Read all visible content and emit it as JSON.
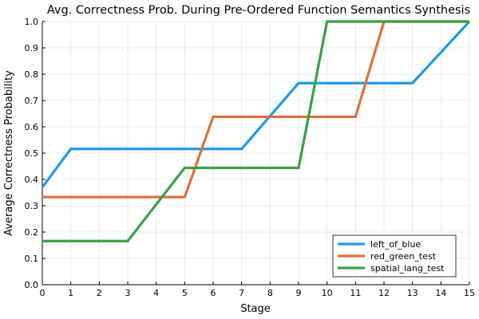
{
  "chart_data": {
    "type": "line",
    "title": "Avg. Correctness Prob. During Pre-Ordered Function Semantics Synthesis",
    "xlabel": "Stage",
    "ylabel": "Average Correctness Probability",
    "xlim": [
      0,
      15
    ],
    "ylim": [
      0,
      1
    ],
    "xticks": [
      0,
      1,
      2,
      3,
      4,
      5,
      6,
      7,
      8,
      9,
      10,
      11,
      12,
      13,
      14,
      15
    ],
    "xtick_labels": [
      "0",
      "1",
      "2",
      "3",
      "4",
      "5",
      "6",
      "7",
      "8",
      "9",
      "10",
      "11",
      "12",
      "13",
      "14",
      "15"
    ],
    "yticks": [
      0,
      0.1,
      0.2,
      0.3,
      0.4,
      0.5,
      0.6,
      0.7,
      0.8,
      0.9,
      1.0
    ],
    "ytick_labels": [
      "0.0",
      "0.1",
      "0.2",
      "0.3",
      "0.4",
      "0.5",
      "0.6",
      "0.7",
      "0.8",
      "0.9",
      "1.0"
    ],
    "grid": true,
    "legend_position": "bottom-right",
    "series": [
      {
        "name": "left_of_blue",
        "color": "#1f9be6",
        "points": [
          [
            0,
            0.37
          ],
          [
            1,
            0.516
          ],
          [
            7,
            0.516
          ],
          [
            9,
            0.766
          ],
          [
            13,
            0.766
          ],
          [
            15,
            1.0
          ]
        ]
      },
      {
        "name": "red_green_test",
        "color": "#e0703a",
        "points": [
          [
            0,
            0.333
          ],
          [
            5,
            0.333
          ],
          [
            6,
            0.638
          ],
          [
            11,
            0.638
          ],
          [
            12,
            1.0
          ],
          [
            15,
            1.0
          ]
        ]
      },
      {
        "name": "spatial_lang_test",
        "color": "#3aa142",
        "points": [
          [
            0,
            0.166
          ],
          [
            3,
            0.166
          ],
          [
            5,
            0.444
          ],
          [
            9,
            0.444
          ],
          [
            10,
            1.0
          ],
          [
            15,
            1.0
          ]
        ]
      }
    ]
  }
}
